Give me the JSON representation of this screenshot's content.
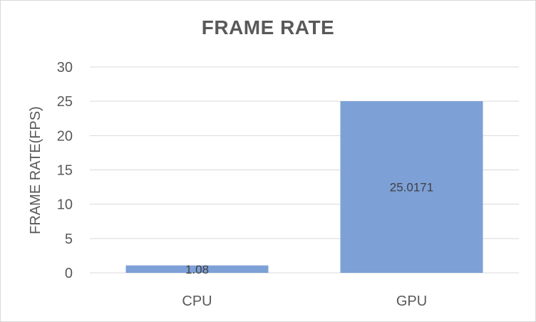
{
  "chart_data": {
    "type": "bar",
    "title": "FRAME RATE",
    "xlabel": "",
    "ylabel": "FRAME RATE(FPS)",
    "categories": [
      "CPU",
      "GPU"
    ],
    "values": [
      1.08,
      25.0171
    ],
    "data_labels": [
      "1.08",
      "25.0171"
    ],
    "ylim": [
      0,
      30
    ],
    "yticks": [
      0,
      5,
      10,
      15,
      20,
      25,
      30
    ],
    "grid": true,
    "bar_color": "#7da0d7",
    "grid_color": "#d9d9d9",
    "legend": "none"
  }
}
